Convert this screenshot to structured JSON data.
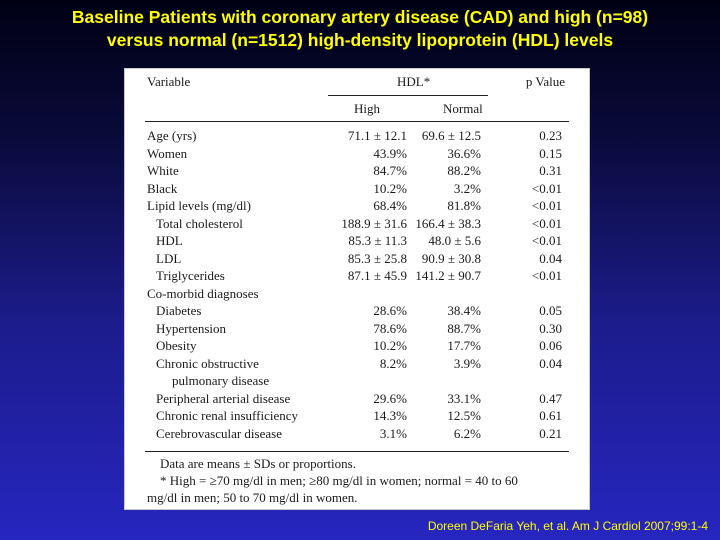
{
  "title_lines": [
    "Baseline Patients with coronary artery disease (CAD) and high (n=98)",
    "versus normal (n=1512) high-density lipoprotein (HDL) levels"
  ],
  "table": {
    "header_variable": "Variable",
    "header_group": "HDL*",
    "header_pvalue": "p Value",
    "header_high": "High",
    "header_normal": "Normal",
    "rows": [
      {
        "label": "Age (yrs)",
        "high": "71.1 ± 12.1",
        "normal": "69.6 ± 12.5",
        "p": "0.23"
      },
      {
        "label": "Women",
        "high": "43.9%",
        "normal": "36.6%",
        "p": "0.15"
      },
      {
        "label": "White",
        "high": "84.7%",
        "normal": "88.2%",
        "p": "0.31"
      },
      {
        "label": "Black",
        "high": "10.2%",
        "normal": "3.2%",
        "p": "<0.01"
      },
      {
        "label": "Lipid levels (mg/dl)",
        "high": "68.4%",
        "normal": "81.8%",
        "p": "<0.01"
      },
      {
        "label": "Total cholesterol",
        "high": "188.9 ± 31.6",
        "normal": "166.4 ± 38.3",
        "p": "<0.01"
      },
      {
        "label": "HDL",
        "high": "85.3 ± 11.3",
        "normal": "48.0 ± 5.6",
        "p": "<0.01"
      },
      {
        "label": "LDL",
        "high": "85.3 ± 25.8",
        "normal": "90.9 ± 30.8",
        "p": "0.04"
      },
      {
        "label": "Triglycerides",
        "high": "87.1 ± 45.9",
        "normal": "141.2 ± 90.7",
        "p": "<0.01"
      },
      {
        "label": "Co-morbid diagnoses",
        "high": "",
        "normal": "",
        "p": ""
      },
      {
        "label": "Diabetes",
        "high": "28.6%",
        "normal": "38.4%",
        "p": "0.05"
      },
      {
        "label": "Hypertension",
        "high": "78.6%",
        "normal": "88.7%",
        "p": "0.30"
      },
      {
        "label": "Obesity",
        "high": "10.2%",
        "normal": "17.7%",
        "p": "0.06"
      },
      {
        "label": "Chronic obstructive",
        "high": "8.2%",
        "normal": "3.9%",
        "p": "0.04"
      },
      {
        "label": "pulmonary disease",
        "high": "",
        "normal": "",
        "p": ""
      },
      {
        "label": "Peripheral arterial disease",
        "high": "29.6%",
        "normal": "33.1%",
        "p": "0.47"
      },
      {
        "label": "Chronic renal insufficiency",
        "high": "14.3%",
        "normal": "12.5%",
        "p": "0.61"
      },
      {
        "label": "Cerebrovascular disease",
        "high": "3.1%",
        "normal": "6.2%",
        "p": "0.21"
      }
    ],
    "footnote_1": "Data are means ± SDs or proportions.",
    "footnote_2a": "* High = ≥70 mg/dl in men; ≥80 mg/dl in women; normal = 40 to 60",
    "footnote_2b": "mg/dl in men; 50 to 70 mg/dl in women."
  },
  "citation": "Doreen DeFaria Yeh, et al. Am J Cardiol 2007;99:1-4"
}
